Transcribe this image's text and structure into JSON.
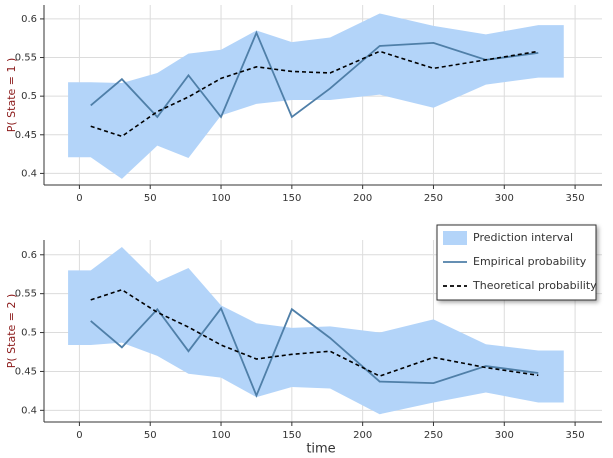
{
  "chart_data": [
    {
      "type": "line",
      "ylabel": "P( State = 1 )",
      "xlim": [
        -25,
        369
      ],
      "ylim": [
        0.385,
        0.618
      ],
      "xticks": [
        0,
        50,
        100,
        150,
        200,
        250,
        300,
        350
      ],
      "yticks": [
        0.4,
        0.45,
        0.5,
        0.55,
        0.6
      ],
      "grid": true,
      "series": [
        {
          "kind": "band",
          "color": "#b3d4f9",
          "x": [
            -8,
            8,
            30,
            55,
            77,
            100,
            125,
            150,
            177,
            212,
            250,
            287,
            324,
            342
          ],
          "lower": [
            0.421,
            0.421,
            0.393,
            0.436,
            0.42,
            0.475,
            0.49,
            0.495,
            0.495,
            0.502,
            0.485,
            0.515,
            0.524,
            0.524
          ],
          "upper": [
            0.518,
            0.518,
            0.517,
            0.53,
            0.555,
            0.56,
            0.585,
            0.57,
            0.576,
            0.607,
            0.591,
            0.58,
            0.592,
            0.592
          ]
        },
        {
          "kind": "line",
          "color": "#4f7fa8",
          "dash": false,
          "x": [
            8,
            30,
            55,
            77,
            100,
            125,
            150,
            177,
            212,
            250,
            287,
            324
          ],
          "values": [
            0.488,
            0.522,
            0.473,
            0.527,
            0.473,
            0.582,
            0.473,
            0.51,
            0.565,
            0.569,
            0.547,
            0.556
          ]
        },
        {
          "kind": "line",
          "color": "#000000",
          "dash": true,
          "x": [
            8,
            30,
            55,
            77,
            100,
            125,
            150,
            177,
            212,
            250,
            287,
            324
          ],
          "values": [
            0.461,
            0.448,
            0.48,
            0.499,
            0.523,
            0.538,
            0.532,
            0.53,
            0.558,
            0.536,
            0.547,
            0.558
          ]
        }
      ]
    },
    {
      "type": "line",
      "ylabel": "P( State = 2 )",
      "xlabel": "time",
      "xlim": [
        -25,
        369
      ],
      "ylim": [
        0.385,
        0.619
      ],
      "xticks": [
        0,
        50,
        100,
        150,
        200,
        250,
        300,
        350
      ],
      "yticks": [
        0.4,
        0.45,
        0.5,
        0.55,
        0.6
      ],
      "grid": true,
      "legend": "top-right",
      "series": [
        {
          "kind": "band",
          "name": "Prediction interval",
          "color": "#b3d4f9",
          "x": [
            -8,
            8,
            30,
            55,
            77,
            100,
            125,
            150,
            177,
            212,
            250,
            287,
            324,
            342
          ],
          "lower": [
            0.484,
            0.484,
            0.487,
            0.47,
            0.447,
            0.442,
            0.417,
            0.43,
            0.428,
            0.395,
            0.41,
            0.423,
            0.41,
            0.41
          ],
          "upper": [
            0.58,
            0.58,
            0.61,
            0.565,
            0.583,
            0.535,
            0.512,
            0.506,
            0.508,
            0.5,
            0.517,
            0.485,
            0.477,
            0.477
          ]
        },
        {
          "kind": "line",
          "name": "Empirical probability",
          "color": "#4f7fa8",
          "dash": false,
          "x": [
            8,
            30,
            55,
            77,
            100,
            125,
            150,
            177,
            212,
            250,
            287,
            324
          ],
          "values": [
            0.515,
            0.481,
            0.53,
            0.476,
            0.531,
            0.419,
            0.53,
            0.493,
            0.437,
            0.435,
            0.457,
            0.448
          ]
        },
        {
          "kind": "line",
          "name": "Theoretical probability",
          "color": "#000000",
          "dash": true,
          "x": [
            8,
            30,
            55,
            77,
            100,
            125,
            150,
            177,
            212,
            250,
            287,
            324
          ],
          "values": [
            0.542,
            0.555,
            0.526,
            0.507,
            0.484,
            0.466,
            0.472,
            0.476,
            0.444,
            0.468,
            0.455,
            0.445
          ]
        }
      ]
    }
  ]
}
